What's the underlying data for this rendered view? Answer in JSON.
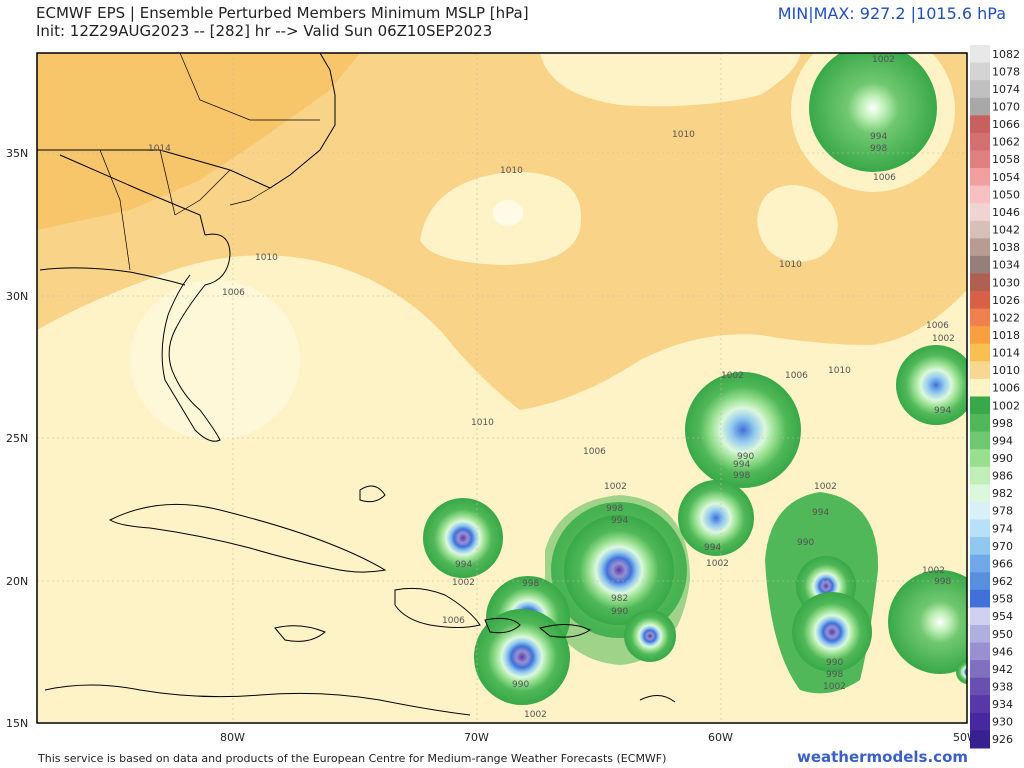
{
  "header": {
    "title_line1": "ECMWF EPS | Ensemble Perturbed Members Minimum MSLP [hPa]",
    "title_line2": "Init: 12Z29AUG2023 -- [282] hr --> Valid Sun 06Z10SEP2023",
    "minmax": "MIN|MAX: 927.2 |1015.6 hPa"
  },
  "footer": {
    "attribution": "This service is based on data and products of the European Centre for Medium-range Weather Forecasts (ECMWF)",
    "brand": "weathermodels.com"
  },
  "axes": {
    "lat_labels": [
      "35N",
      "30N",
      "25N",
      "20N",
      "15N"
    ],
    "lon_labels": [
      "80W",
      "70W",
      "60W",
      "50W"
    ]
  },
  "colorbar": {
    "levels": [
      "1082",
      "1078",
      "1074",
      "1070",
      "1066",
      "1062",
      "1058",
      "1054",
      "1050",
      "1046",
      "1042",
      "1038",
      "1034",
      "1030",
      "1026",
      "1022",
      "1018",
      "1014",
      "1010",
      "1006",
      "1002",
      "998",
      "994",
      "990",
      "986",
      "982",
      "978",
      "974",
      "970",
      "966",
      "962",
      "958",
      "954",
      "950",
      "946",
      "942",
      "938",
      "934",
      "930",
      "926"
    ],
    "colors": [
      "#e8e8e8",
      "#d4d4d4",
      "#c0c0c0",
      "#a8a8a8",
      "#c86060",
      "#d47070",
      "#e08080",
      "#f0a0a0",
      "#f8c0c0",
      "#f0d4d4",
      "#d8c0b8",
      "#b89c94",
      "#948078",
      "#b06050",
      "#d86048",
      "#f08050",
      "#f8a040",
      "#f8c050",
      "#f8d890",
      "#fcf4c4",
      "#38a848",
      "#50b858",
      "#70c870",
      "#98e090",
      "#c0f0b8",
      "#dcf8dc",
      "#d8f0f8",
      "#b8e0f8",
      "#90c8f0",
      "#70a8e8",
      "#5890e0",
      "#4070d8",
      "#d0d0f0",
      "#b0b0e0",
      "#9890d0",
      "#8070c0",
      "#6850b0",
      "#5838a8",
      "#4828a0",
      "#382090"
    ]
  },
  "contour_labels": [
    {
      "text": "1014"
    },
    {
      "text": "1010"
    },
    {
      "text": "1006"
    },
    {
      "text": "1010"
    },
    {
      "text": "1010"
    },
    {
      "text": "1002"
    },
    {
      "text": "994"
    },
    {
      "text": "998"
    },
    {
      "text": "1006"
    },
    {
      "text": "1010"
    },
    {
      "text": "1006"
    },
    {
      "text": "1002"
    },
    {
      "text": "994"
    },
    {
      "text": "1010"
    },
    {
      "text": "1006"
    },
    {
      "text": "1002"
    },
    {
      "text": "990"
    },
    {
      "text": "994"
    },
    {
      "text": "998"
    },
    {
      "text": "1010"
    },
    {
      "text": "1006"
    },
    {
      "text": "1002"
    },
    {
      "text": "998"
    },
    {
      "text": "994"
    },
    {
      "text": "982"
    },
    {
      "text": "990"
    },
    {
      "text": "994"
    },
    {
      "text": "1002"
    },
    {
      "text": "1002"
    },
    {
      "text": "994"
    },
    {
      "text": "990"
    },
    {
      "text": "990"
    },
    {
      "text": "998"
    },
    {
      "text": "1002"
    },
    {
      "text": "994"
    },
    {
      "text": "1002"
    },
    {
      "text": "998"
    },
    {
      "text": "990"
    },
    {
      "text": "1002"
    },
    {
      "text": "1006"
    },
    {
      "text": "1002"
    },
    {
      "text": "998"
    }
  ]
}
